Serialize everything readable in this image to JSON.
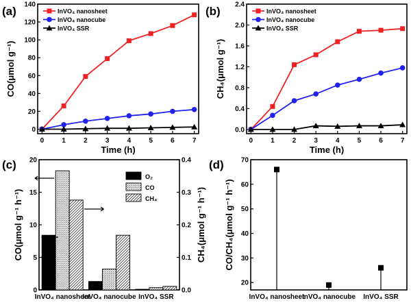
{
  "chart_data": [
    {
      "type": "line",
      "panel": "(a)",
      "xlabel": "Time (h)",
      "ylabel": "CO(μmol g⁻¹)",
      "x": [
        0,
        1,
        2,
        3,
        4,
        5,
        6,
        7
      ],
      "xlim": [
        -0.2,
        7.2
      ],
      "ylim": [
        -5,
        140
      ],
      "xticks": [
        0,
        1,
        2,
        3,
        4,
        5,
        6,
        7
      ],
      "yticks": [
        0,
        20,
        40,
        60,
        80,
        100,
        120,
        140
      ],
      "legend_position": "top-left",
      "series": [
        {
          "name": "InVO₄ nanosheet",
          "color": "#ee2222",
          "marker": "square",
          "values": [
            0,
            26,
            59,
            79,
            99,
            107,
            116,
            128
          ]
        },
        {
          "name": "InVO₄ nanocube",
          "color": "#2222ee",
          "marker": "circle",
          "values": [
            0,
            5,
            9,
            12,
            15,
            17,
            20,
            22
          ]
        },
        {
          "name": "InVO₄ SSR",
          "color": "#000000",
          "marker": "triangle",
          "values": [
            0,
            0,
            0.5,
            1,
            1,
            1.5,
            2,
            2.5
          ]
        }
      ]
    },
    {
      "type": "line",
      "panel": "(b)",
      "xlabel": "Time (h)",
      "ylabel": "CH₄(μmol g⁻¹)",
      "x": [
        0,
        1,
        2,
        3,
        4,
        5,
        6,
        7
      ],
      "xlim": [
        -0.2,
        7.2
      ],
      "ylim": [
        -0.08,
        2.4
      ],
      "xticks": [
        0,
        1,
        2,
        3,
        4,
        5,
        6,
        7
      ],
      "yticks": [
        0.0,
        0.4,
        0.8,
        1.2,
        1.6,
        2.0,
        2.4
      ],
      "legend_position": "top-left",
      "series": [
        {
          "name": "InVO₄ nanosheet",
          "color": "#ee2222",
          "marker": "square",
          "values": [
            0,
            0.44,
            1.24,
            1.43,
            1.68,
            1.88,
            1.9,
            1.93
          ]
        },
        {
          "name": "InVO₄ nanocube",
          "color": "#2222ee",
          "marker": "circle",
          "values": [
            0,
            0.27,
            0.55,
            0.68,
            0.85,
            0.96,
            1.08,
            1.18
          ]
        },
        {
          "name": "InVO₄ SSR",
          "color": "#000000",
          "marker": "triangle",
          "values": [
            0,
            0,
            0,
            0.07,
            0.06,
            0.07,
            0.07,
            0.09
          ]
        }
      ]
    },
    {
      "type": "bar",
      "panel": "(c)",
      "ylabel": "CO(μmol g⁻¹ h⁻¹)",
      "ylabel_right": "CH₄(μmol g⁻¹ h⁻¹)",
      "categories": [
        "InVO₄ nanosheet",
        "InVO₄ nanocube",
        "InVO₄ SSR"
      ],
      "ylim": [
        0,
        20
      ],
      "ylim_right": [
        0,
        0.4
      ],
      "yticks": [
        0,
        5,
        10,
        15,
        20
      ],
      "yticks_right": [
        0.0,
        0.1,
        0.2,
        0.3,
        0.4
      ],
      "legend_position": "top-right",
      "series": [
        {
          "name": "O₂",
          "axis": "left",
          "fill": "solid",
          "values": [
            8.4,
            1.3,
            0.1
          ]
        },
        {
          "name": "CO",
          "axis": "left",
          "fill": "dots",
          "values": [
            18.3,
            3.2,
            0.35
          ]
        },
        {
          "name": "CH₄",
          "axis": "right",
          "fill": "hatch",
          "values": [
            0.276,
            0.168,
            0.011
          ]
        }
      ]
    },
    {
      "type": "scatter",
      "panel": "(d)",
      "ylabel": "CO/CH₄(μmol g⁻¹ h⁻¹)",
      "categories": [
        "InVO₄ nanosheet",
        "InVO₄ nanocube",
        "InVO₄ SSR"
      ],
      "ylim": [
        17,
        70
      ],
      "yticks": [
        20,
        30,
        40,
        50,
        60,
        70
      ],
      "values": [
        66,
        19,
        26
      ]
    }
  ]
}
